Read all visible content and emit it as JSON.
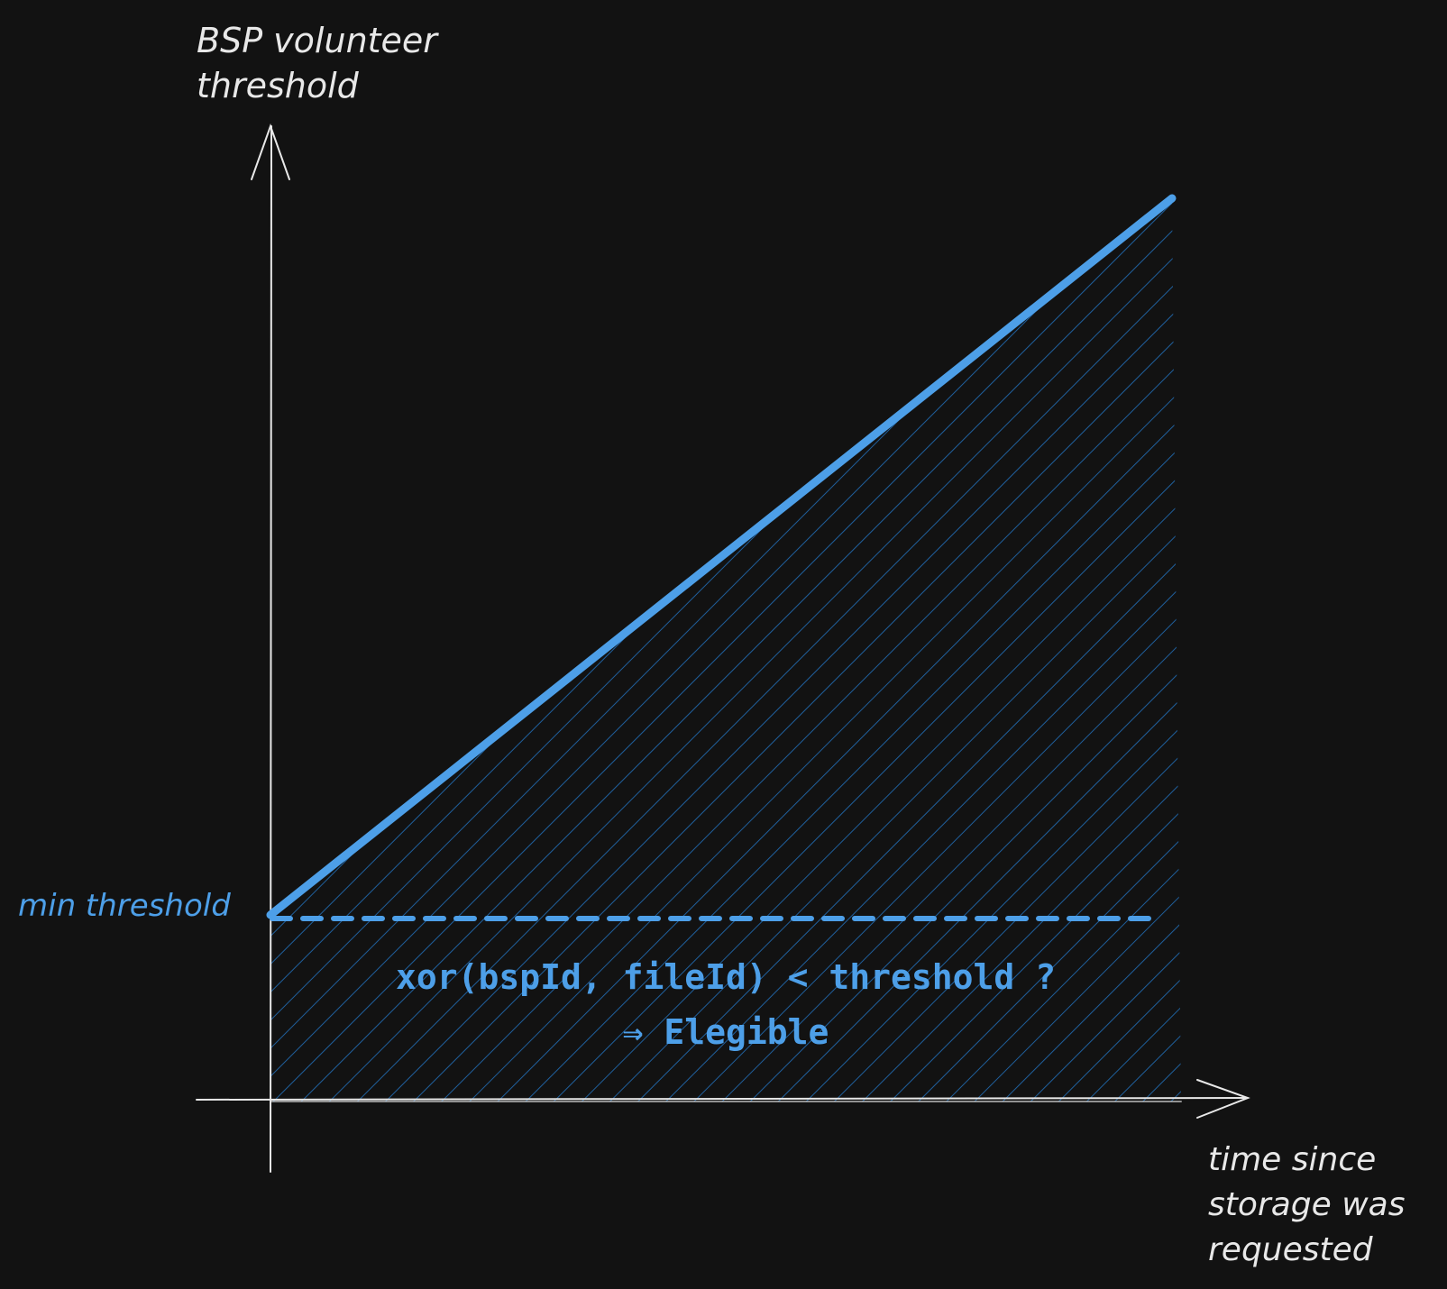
{
  "diagram": {
    "y_axis_label_lines": [
      "BSP volunteer",
      "threshold"
    ],
    "x_axis_label_lines": [
      "time since",
      "storage was",
      "requested"
    ],
    "min_threshold_label": "min threshold",
    "condition_text": "xor(bspId, fileId) < threshold ?",
    "result_text": "⇒ Elegible",
    "colors": {
      "background": "#121212",
      "axis": "#e8e8e8",
      "accent": "#4d9fe8",
      "hatch": "#1f5f9c"
    }
  }
}
